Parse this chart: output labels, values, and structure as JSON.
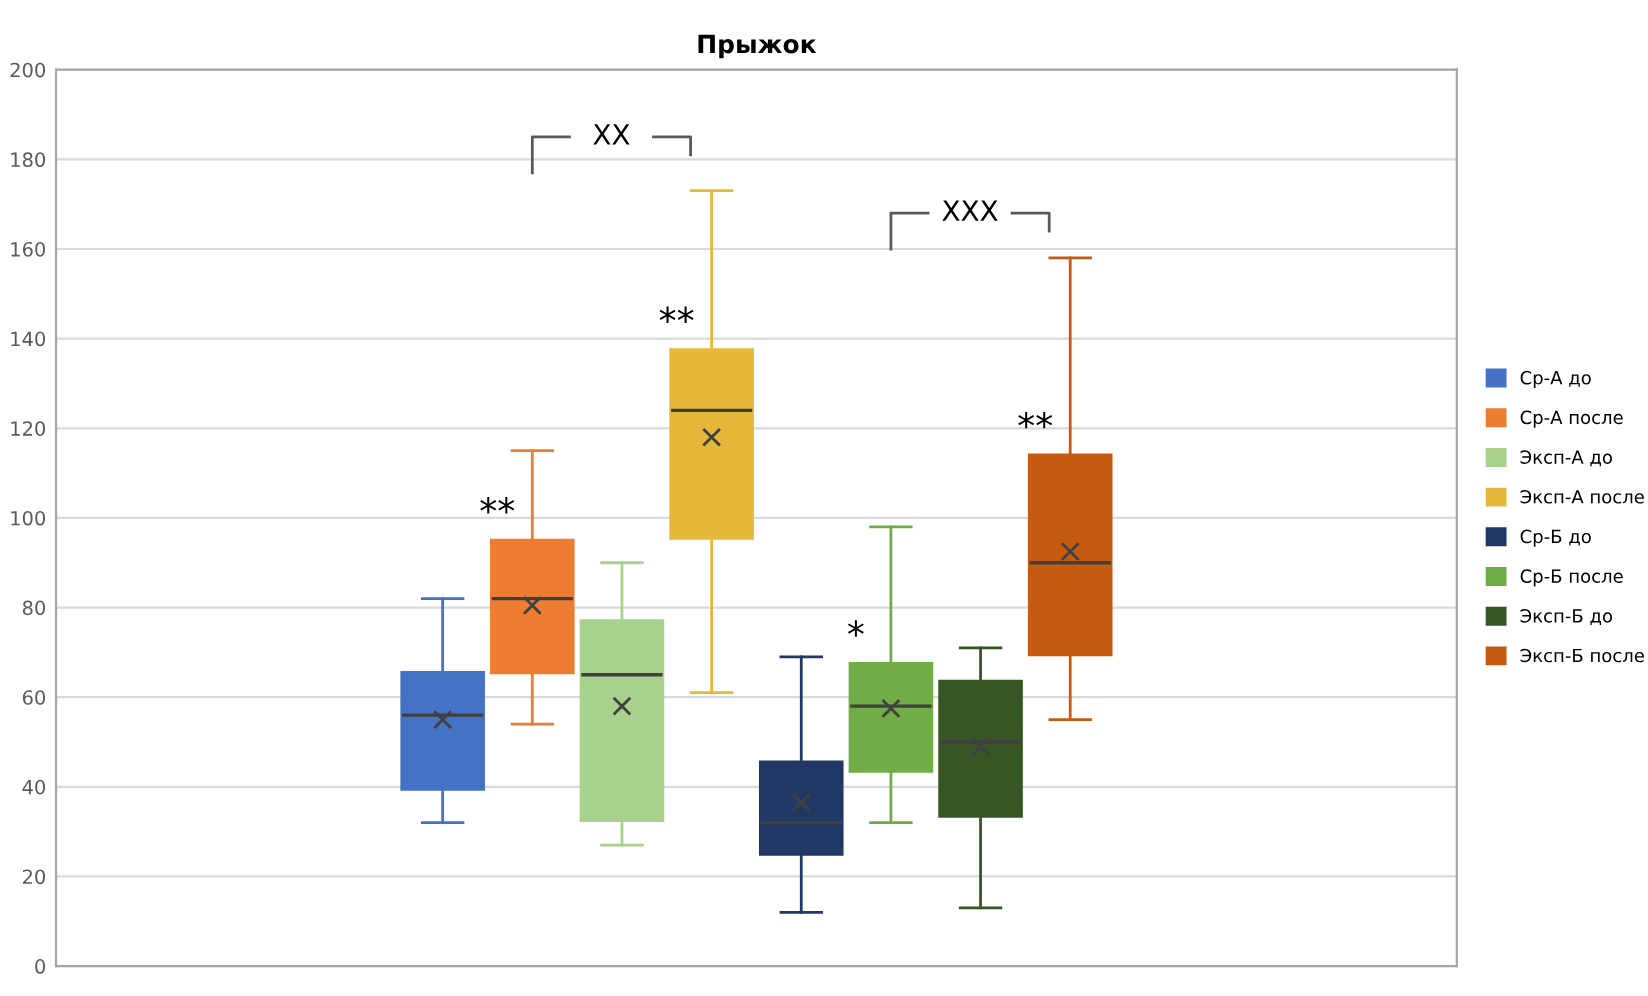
{
  "chart_data": {
    "type": "box",
    "title": "Прыжок",
    "categories": [
      null
    ],
    "ylim": [
      0,
      200
    ],
    "yticks": [
      0,
      20,
      40,
      60,
      80,
      100,
      120,
      140,
      160,
      180,
      200
    ],
    "grid": "y",
    "legend": "right",
    "annotations": [
      "**",
      "**",
      "*",
      "**",
      "XX",
      "XXX"
    ],
    "series": [
      {
        "name": "Ср-А до",
        "color": "#4472c4",
        "boxes": [
          {
            "low": 32,
            "q1": 39.5,
            "median": 56,
            "q3": 65.5,
            "high": 82,
            "mean": 55
          }
        ]
      },
      {
        "name": "Ср-А после",
        "color": "#ed7d31",
        "boxes": [
          {
            "low": 54,
            "q1": 65.5,
            "median": 82,
            "q3": 95,
            "high": 115,
            "mean": 80.5
          }
        ]
      },
      {
        "name": "Эксп-А до",
        "color": "#a9d18e",
        "boxes": [
          {
            "low": 27,
            "q1": 32.5,
            "median": 65,
            "q3": 77,
            "high": 90,
            "mean": 58
          }
        ]
      },
      {
        "name": "Эксп-А после",
        "color": "#e6b83a",
        "boxes": [
          {
            "low": 61,
            "q1": 95.5,
            "median": 124,
            "q3": 137.5,
            "high": 173,
            "mean": 118
          }
        ]
      },
      {
        "name": "Ср-Б до",
        "color": "#203864",
        "boxes": [
          {
            "low": 12,
            "q1": 25,
            "median": 32,
            "q3": 45.5,
            "high": 69,
            "mean": 36.5
          }
        ]
      },
      {
        "name": "Ср-Б после",
        "color": "#70ad47",
        "boxes": [
          {
            "low": 32,
            "q1": 43.5,
            "median": 58,
            "q3": 67.5,
            "high": 98,
            "mean": 57.5
          }
        ]
      },
      {
        "name": "Эксп-Б до",
        "color": "#375623",
        "boxes": [
          {
            "low": 13,
            "q1": 33.5,
            "median": 50,
            "q3": 63.5,
            "high": 71,
            "mean": 49
          }
        ]
      },
      {
        "name": "Эксп-Б после",
        "color": "#c55a11",
        "boxes": [
          {
            "low": 55,
            "q1": 69.5,
            "median": 90,
            "q3": 114,
            "high": 158,
            "mean": 92.5
          }
        ]
      }
    ]
  }
}
